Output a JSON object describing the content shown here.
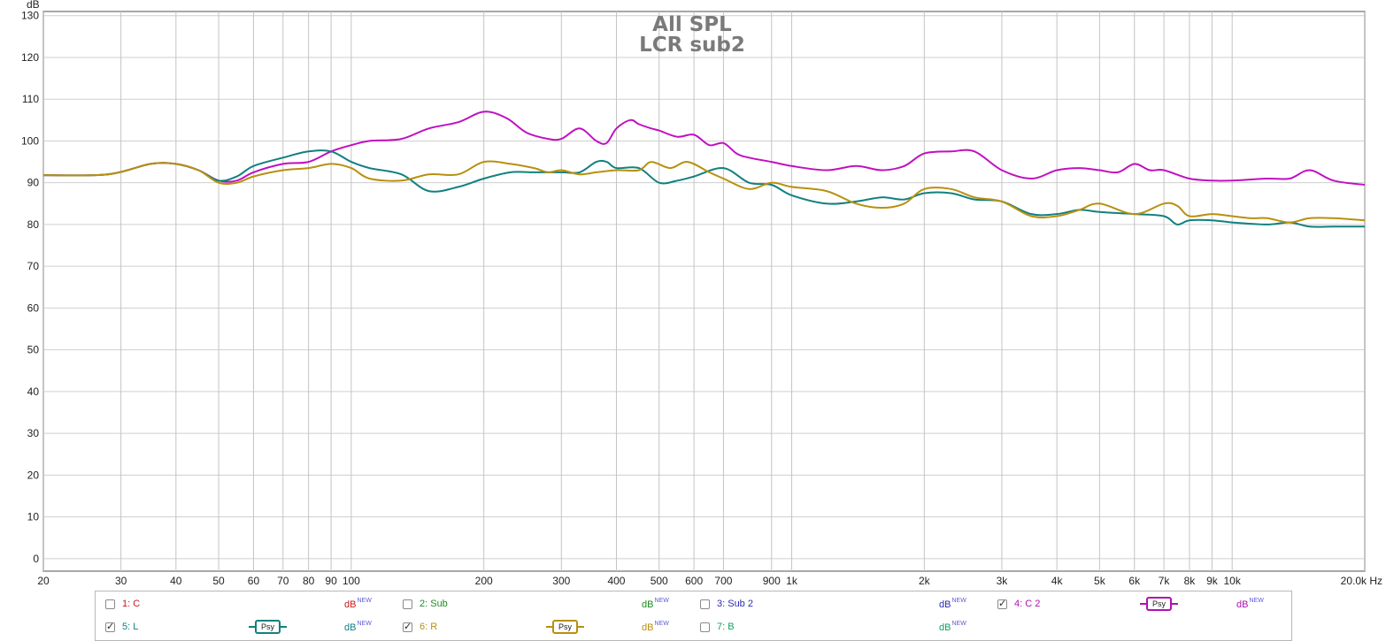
{
  "chart_data": {
    "type": "line",
    "title": "All SPL",
    "subtitle": "LCR sub2",
    "ylabel": "dB",
    "xunit": "Hz",
    "xscale": "log",
    "xlim": [
      20,
      20000
    ],
    "ylim": [
      -3,
      131
    ],
    "grid": true,
    "yticks": [
      "0",
      "10",
      "20",
      "30",
      "40",
      "50",
      "60",
      "70",
      "80",
      "90",
      "100",
      "110",
      "120",
      "130"
    ],
    "xticks": [
      {
        "v": 20,
        "t": "20"
      },
      {
        "v": 30,
        "t": "30"
      },
      {
        "v": 40,
        "t": "40"
      },
      {
        "v": 50,
        "t": "50"
      },
      {
        "v": 60,
        "t": "60"
      },
      {
        "v": 70,
        "t": "70"
      },
      {
        "v": 80,
        "t": "80"
      },
      {
        "v": 90,
        "t": "90"
      },
      {
        "v": 100,
        "t": "100"
      },
      {
        "v": 200,
        "t": "200"
      },
      {
        "v": 300,
        "t": "300"
      },
      {
        "v": 400,
        "t": "400"
      },
      {
        "v": 500,
        "t": "500"
      },
      {
        "v": 600,
        "t": "600"
      },
      {
        "v": 700,
        "t": "700"
      },
      {
        "v": 900,
        "t": "900"
      },
      {
        "v": 1000,
        "t": "1k"
      },
      {
        "v": 2000,
        "t": "2k"
      },
      {
        "v": 3000,
        "t": "3k"
      },
      {
        "v": 4000,
        "t": "4k"
      },
      {
        "v": 5000,
        "t": "5k"
      },
      {
        "v": 6000,
        "t": "6k"
      },
      {
        "v": 7000,
        "t": "7k"
      },
      {
        "v": 8000,
        "t": "8k"
      },
      {
        "v": 9000,
        "t": "9k"
      },
      {
        "v": 10000,
        "t": "10k"
      },
      {
        "v": 20000,
        "t": "20.0k Hz"
      }
    ],
    "series": [
      {
        "name": "4: C 2",
        "color": "#c010c0",
        "x": [
          20,
          28,
          35,
          40,
          45,
          50,
          55,
          60,
          70,
          80,
          90,
          100,
          110,
          130,
          150,
          175,
          200,
          225,
          250,
          280,
          300,
          330,
          360,
          380,
          400,
          430,
          450,
          480,
          500,
          550,
          600,
          650,
          700,
          750,
          800,
          900,
          1000,
          1200,
          1400,
          1600,
          1800,
          2000,
          2300,
          2600,
          3000,
          3500,
          4000,
          4500,
          5000,
          5500,
          6000,
          6500,
          7000,
          8000,
          9000,
          10000,
          12000,
          13500,
          15000,
          17000,
          20000
        ],
        "y": [
          91.8,
          92,
          94.5,
          94.5,
          93,
          90.5,
          90.5,
          92.5,
          94.5,
          95,
          97.5,
          99,
          100,
          100.5,
          103,
          104.5,
          107,
          105.5,
          102,
          100.5,
          100.5,
          103,
          100,
          99.5,
          103,
          105,
          104,
          103,
          102.5,
          101,
          101.5,
          99,
          99.5,
          97,
          96,
          95,
          94,
          93,
          94,
          93,
          94,
          97,
          97.5,
          97.5,
          93,
          91,
          93,
          93.5,
          93,
          92.5,
          94.5,
          93,
          93,
          91,
          90.5,
          90.5,
          91,
          91,
          93,
          90.5,
          89.5
        ]
      },
      {
        "name": "5: L",
        "color": "#118080",
        "x": [
          20,
          28,
          35,
          40,
          45,
          50,
          55,
          60,
          70,
          80,
          90,
          100,
          110,
          130,
          150,
          175,
          200,
          230,
          260,
          300,
          330,
          360,
          380,
          400,
          450,
          500,
          550,
          600,
          700,
          800,
          900,
          1000,
          1200,
          1400,
          1600,
          1800,
          2000,
          2300,
          2600,
          3000,
          3500,
          4000,
          4500,
          5000,
          6000,
          7000,
          7500,
          8000,
          9000,
          10000,
          12000,
          13500,
          15000,
          17000,
          20000
        ],
        "y": [
          91.8,
          92,
          94.5,
          94.5,
          93,
          90.5,
          91.5,
          94,
          96,
          97.5,
          97.5,
          95,
          93.5,
          92,
          88,
          89,
          91,
          92.5,
          92.5,
          92.5,
          92.5,
          95,
          95,
          93.5,
          93.5,
          90,
          90.5,
          91.5,
          93.5,
          90,
          89.5,
          87,
          85,
          85.5,
          86.5,
          86,
          87.5,
          87.5,
          86,
          85.5,
          82.5,
          82.5,
          83.5,
          83,
          82.5,
          82,
          80,
          81,
          81,
          80.5,
          80,
          80.5,
          79.5,
          79.5,
          79.5
        ]
      },
      {
        "name": "6: R",
        "color": "#b8900e",
        "x": [
          20,
          28,
          35,
          40,
          45,
          50,
          55,
          60,
          70,
          80,
          90,
          100,
          110,
          130,
          150,
          175,
          200,
          230,
          260,
          280,
          300,
          330,
          360,
          400,
          450,
          480,
          530,
          580,
          650,
          700,
          800,
          900,
          1000,
          1200,
          1400,
          1600,
          1800,
          2000,
          2300,
          2600,
          3000,
          3500,
          4000,
          4500,
          5000,
          6000,
          7000,
          7500,
          8000,
          9000,
          10000,
          11000,
          12000,
          13500,
          15000,
          17000,
          20000
        ],
        "y": [
          91.8,
          92,
          94.5,
          94.5,
          93,
          90,
          90,
          91.5,
          93,
          93.5,
          94.5,
          93.5,
          91,
          90.5,
          92,
          92,
          95,
          94.5,
          93.5,
          92.5,
          93,
          92,
          92.5,
          93,
          93,
          95,
          93.5,
          95,
          92.5,
          91,
          88.5,
          90,
          89,
          88,
          85,
          84,
          85,
          88.5,
          88.5,
          86.5,
          85.5,
          82,
          82,
          83.5,
          85,
          82.5,
          85,
          84.5,
          82,
          82.5,
          82,
          81.5,
          81.5,
          80.5,
          81.5,
          81.5,
          81
        ]
      }
    ]
  },
  "legend": {
    "c1": {
      "label": "1: C",
      "color": "#c81818",
      "db_color": "#c81818"
    },
    "c2": {
      "label": "2: Sub",
      "color": "#1e8c1e",
      "db_color": "#1e8c1e"
    },
    "c3": {
      "label": "3: Sub 2",
      "color": "#2a2ab4",
      "db_color": "#2a2ab4"
    },
    "c4": {
      "label": "4: C 2",
      "color": "#b010b0",
      "db_color": "#b010b0",
      "psy": "Psy"
    },
    "c5": {
      "label": "5: L",
      "color": "#118080",
      "db_color": "#118080",
      "psy": "Psy"
    },
    "c6": {
      "label": "6: R",
      "color": "#b8900e",
      "db_color": "#b8900e",
      "psy": "Psy"
    },
    "c7": {
      "label": "7: B",
      "color": "#10a060",
      "db_color": "#10a060"
    },
    "db_text": "dB",
    "new_text": "NEW"
  }
}
